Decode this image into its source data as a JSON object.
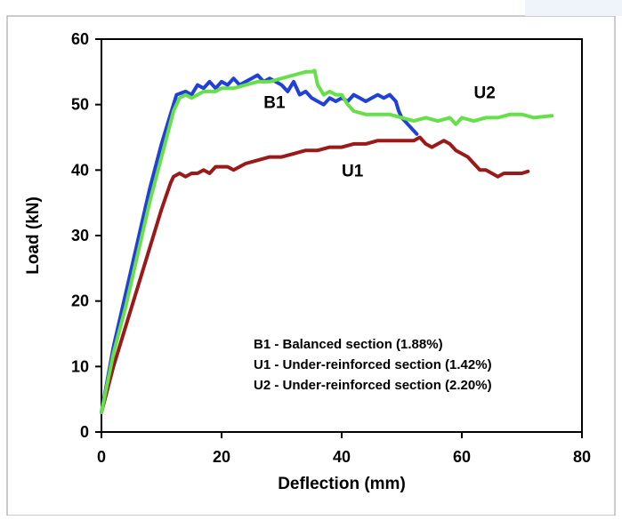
{
  "chart_data": {
    "type": "line",
    "title": "",
    "xlabel": "Deflection (mm)",
    "ylabel": "Load (kN)",
    "xlim": [
      0,
      80
    ],
    "ylim": [
      0,
      60
    ],
    "xticks": [
      "0",
      "20",
      "40",
      "60",
      "80"
    ],
    "yticks": [
      "0",
      "10",
      "20",
      "30",
      "40",
      "50",
      "60"
    ],
    "grid": false,
    "legend": "none",
    "annotations": [
      "B1 - Balanced section (1.88%)",
      "U1 - Under-reinforced section (1.42%)",
      "U2 - Under-reinforced section (2.20%)"
    ],
    "series": [
      {
        "name": "B1",
        "color": "#2040d8",
        "label_at": [
          27,
          49.5
        ],
        "points": [
          [
            0,
            3
          ],
          [
            2,
            13
          ],
          [
            4,
            21
          ],
          [
            6,
            29
          ],
          [
            8,
            37
          ],
          [
            10,
            44
          ],
          [
            11.5,
            48.5
          ],
          [
            12.5,
            51.5
          ],
          [
            14,
            52
          ],
          [
            15,
            51.5
          ],
          [
            16,
            53
          ],
          [
            17,
            52.5
          ],
          [
            18,
            53.5
          ],
          [
            19,
            52.5
          ],
          [
            20,
            53.5
          ],
          [
            21,
            53
          ],
          [
            22,
            54
          ],
          [
            23,
            53
          ],
          [
            24,
            53.5
          ],
          [
            25,
            54
          ],
          [
            26,
            54.5
          ],
          [
            27,
            53.5
          ],
          [
            28,
            54
          ],
          [
            29,
            53.5
          ],
          [
            30,
            53
          ],
          [
            31,
            52
          ],
          [
            32,
            53.5
          ],
          [
            33,
            51.5
          ],
          [
            34,
            52
          ],
          [
            35,
            51
          ],
          [
            36,
            50.5
          ],
          [
            37,
            50
          ],
          [
            38,
            51
          ],
          [
            39,
            50.5
          ],
          [
            40,
            51
          ],
          [
            41,
            50.5
          ],
          [
            42,
            51.5
          ],
          [
            43,
            51
          ],
          [
            44,
            50.5
          ],
          [
            45,
            51
          ],
          [
            46,
            51.5
          ],
          [
            47,
            51
          ],
          [
            48,
            51.5
          ],
          [
            49,
            50.5
          ],
          [
            49.5,
            49
          ],
          [
            50,
            48
          ],
          [
            51,
            47
          ],
          [
            52,
            46
          ],
          [
            52.5,
            45.5
          ]
        ]
      },
      {
        "name": "U1",
        "color": "#9a1a1a",
        "label_at": [
          40,
          39
        ],
        "points": [
          [
            0,
            3
          ],
          [
            2,
            10
          ],
          [
            4,
            16
          ],
          [
            6,
            22
          ],
          [
            8,
            28
          ],
          [
            10,
            34
          ],
          [
            11.5,
            38
          ],
          [
            12,
            39
          ],
          [
            13,
            39.5
          ],
          [
            14,
            39
          ],
          [
            15,
            39.5
          ],
          [
            16,
            39.5
          ],
          [
            17,
            40
          ],
          [
            18,
            39.5
          ],
          [
            19,
            40.5
          ],
          [
            20,
            40.5
          ],
          [
            21,
            40.5
          ],
          [
            22,
            40
          ],
          [
            24,
            41
          ],
          [
            26,
            41.5
          ],
          [
            28,
            42
          ],
          [
            30,
            42
          ],
          [
            32,
            42.5
          ],
          [
            34,
            43
          ],
          [
            36,
            43
          ],
          [
            38,
            43.5
          ],
          [
            40,
            43.5
          ],
          [
            42,
            44
          ],
          [
            44,
            44
          ],
          [
            46,
            44.5
          ],
          [
            48,
            44.5
          ],
          [
            50,
            44.5
          ],
          [
            52,
            44.5
          ],
          [
            53,
            45
          ],
          [
            54,
            44
          ],
          [
            55,
            43.5
          ],
          [
            56,
            44
          ],
          [
            57,
            44.5
          ],
          [
            58,
            44
          ],
          [
            59,
            43
          ],
          [
            60,
            42.5
          ],
          [
            61,
            42
          ],
          [
            62,
            41
          ],
          [
            63,
            40
          ],
          [
            64,
            40
          ],
          [
            65,
            39.5
          ],
          [
            66,
            39
          ],
          [
            67,
            39.5
          ],
          [
            68,
            39.5
          ],
          [
            70,
            39.5
          ],
          [
            71,
            39.8
          ]
        ]
      },
      {
        "name": "U2",
        "color": "#66e048",
        "label_at": [
          62,
          51
        ],
        "points": [
          [
            0,
            3
          ],
          [
            2,
            12
          ],
          [
            4,
            19
          ],
          [
            6,
            27
          ],
          [
            8,
            35
          ],
          [
            10,
            42
          ],
          [
            11,
            45.5
          ],
          [
            12,
            49
          ],
          [
            13,
            51
          ],
          [
            14,
            51.5
          ],
          [
            15,
            51
          ],
          [
            16,
            51.5
          ],
          [
            17,
            52
          ],
          [
            18,
            52
          ],
          [
            19,
            52
          ],
          [
            20,
            52.5
          ],
          [
            22,
            52.5
          ],
          [
            24,
            53
          ],
          [
            26,
            53.5
          ],
          [
            28,
            53.5
          ],
          [
            30,
            54
          ],
          [
            32,
            54.5
          ],
          [
            34,
            55
          ],
          [
            35,
            55
          ],
          [
            35.5,
            55.2
          ],
          [
            36,
            53
          ],
          [
            37,
            51.5
          ],
          [
            38,
            52
          ],
          [
            39,
            51.5
          ],
          [
            40,
            51.5
          ],
          [
            41,
            50
          ],
          [
            42,
            49
          ],
          [
            44,
            48.5
          ],
          [
            46,
            48.5
          ],
          [
            48,
            48.5
          ],
          [
            50,
            48
          ],
          [
            52,
            47.5
          ],
          [
            54,
            48
          ],
          [
            56,
            47.5
          ],
          [
            58,
            48
          ],
          [
            59,
            47
          ],
          [
            60,
            48
          ],
          [
            62,
            47.5
          ],
          [
            64,
            48
          ],
          [
            66,
            48
          ],
          [
            68,
            48.5
          ],
          [
            70,
            48.5
          ],
          [
            72,
            48
          ],
          [
            74,
            48.2
          ],
          [
            75,
            48.3
          ]
        ]
      }
    ]
  }
}
